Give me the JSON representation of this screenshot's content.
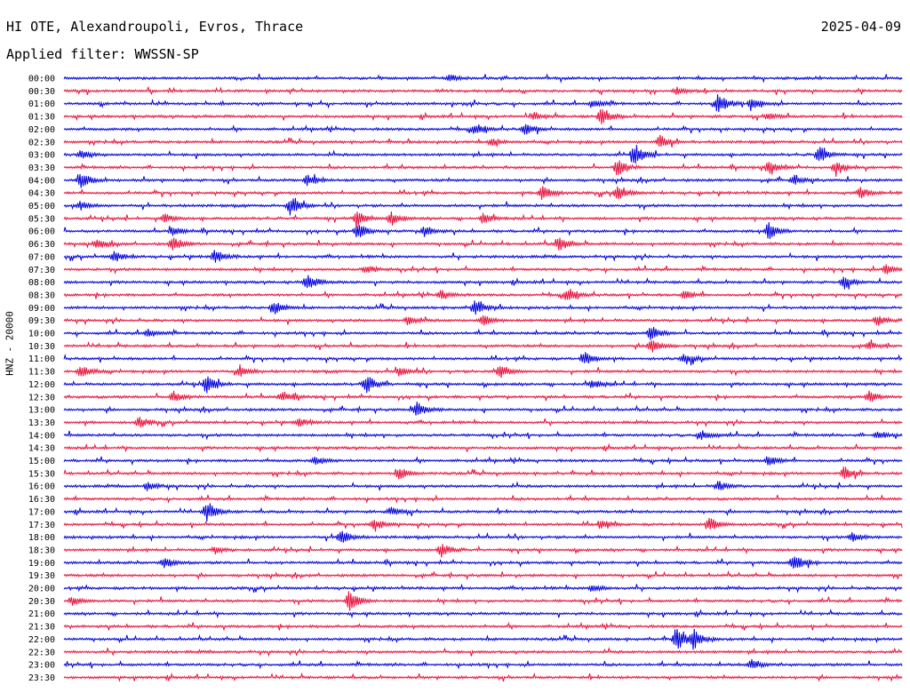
{
  "header": {
    "title": "HI OTE, Alexandroupoli, Evros, Thrace",
    "date": "2025-04-09",
    "filter": "Applied filter: WWSSN-SP"
  },
  "channel_label": "HNZ - 20000",
  "colors": {
    "even_trace": "#0000dd",
    "odd_trace": "#e8103c"
  },
  "chart_data": {
    "type": "line",
    "description_kind": "helicorder",
    "row_labels": [
      "00:00",
      "00:30",
      "01:00",
      "01:30",
      "02:00",
      "02:30",
      "03:00",
      "03:30",
      "04:00",
      "04:30",
      "05:00",
      "05:30",
      "06:00",
      "06:30",
      "07:00",
      "07:30",
      "08:00",
      "08:30",
      "09:00",
      "09:30",
      "10:00",
      "10:30",
      "11:00",
      "11:30",
      "12:00",
      "12:30",
      "13:00",
      "13:30",
      "14:00",
      "14:30",
      "15:00",
      "15:30",
      "16:00",
      "16:30",
      "17:00",
      "17:30",
      "18:00",
      "18:30",
      "19:00",
      "19:30",
      "20:00",
      "20:30",
      "21:00",
      "21:30",
      "22:00",
      "22:30",
      "23:00",
      "23:30"
    ],
    "events": [
      {
        "row": 0,
        "x": 0.46,
        "amp": 4
      },
      {
        "row": 1,
        "x": 0.73,
        "amp": 4
      },
      {
        "row": 2,
        "x": 0.78,
        "amp": 12
      },
      {
        "row": 2,
        "x": 0.82,
        "amp": 7
      },
      {
        "row": 2,
        "x": 0.63,
        "amp": 5
      },
      {
        "row": 3,
        "x": 0.64,
        "amp": 10
      },
      {
        "row": 3,
        "x": 0.56,
        "amp": 4
      },
      {
        "row": 3,
        "x": 0.84,
        "amp": 4
      },
      {
        "row": 4,
        "x": 0.49,
        "amp": 7
      },
      {
        "row": 4,
        "x": 0.55,
        "amp": 7
      },
      {
        "row": 5,
        "x": 0.71,
        "amp": 8
      },
      {
        "row": 5,
        "x": 0.51,
        "amp": 4
      },
      {
        "row": 6,
        "x": 0.68,
        "amp": 11
      },
      {
        "row": 6,
        "x": 0.9,
        "amp": 10
      },
      {
        "row": 6,
        "x": 0.02,
        "amp": 5
      },
      {
        "row": 7,
        "x": 0.66,
        "amp": 10
      },
      {
        "row": 7,
        "x": 0.84,
        "amp": 8
      },
      {
        "row": 7,
        "x": 0.92,
        "amp": 8
      },
      {
        "row": 8,
        "x": 0.02,
        "amp": 9
      },
      {
        "row": 8,
        "x": 0.29,
        "amp": 6
      },
      {
        "row": 8,
        "x": 0.87,
        "amp": 5
      },
      {
        "row": 9,
        "x": 0.57,
        "amp": 9
      },
      {
        "row": 9,
        "x": 0.66,
        "amp": 8
      },
      {
        "row": 9,
        "x": 0.95,
        "amp": 6
      },
      {
        "row": 10,
        "x": 0.27,
        "amp": 11
      },
      {
        "row": 10,
        "x": 0.02,
        "amp": 5
      },
      {
        "row": 11,
        "x": 0.35,
        "amp": 9
      },
      {
        "row": 11,
        "x": 0.39,
        "amp": 7
      },
      {
        "row": 11,
        "x": 0.5,
        "amp": 6
      },
      {
        "row": 11,
        "x": 0.12,
        "amp": 5
      },
      {
        "row": 12,
        "x": 0.35,
        "amp": 9
      },
      {
        "row": 12,
        "x": 0.84,
        "amp": 10
      },
      {
        "row": 12,
        "x": 0.43,
        "amp": 6
      },
      {
        "row": 12,
        "x": 0.13,
        "amp": 5
      },
      {
        "row": 13,
        "x": 0.13,
        "amp": 8
      },
      {
        "row": 13,
        "x": 0.59,
        "amp": 8
      },
      {
        "row": 13,
        "x": 0.04,
        "amp": 5
      },
      {
        "row": 14,
        "x": 0.18,
        "amp": 8
      },
      {
        "row": 14,
        "x": 0.06,
        "amp": 6
      },
      {
        "row": 15,
        "x": 0.36,
        "amp": 5
      },
      {
        "row": 15,
        "x": 0.98,
        "amp": 6
      },
      {
        "row": 16,
        "x": 0.29,
        "amp": 9
      },
      {
        "row": 16,
        "x": 0.93,
        "amp": 7
      },
      {
        "row": 17,
        "x": 0.6,
        "amp": 9
      },
      {
        "row": 17,
        "x": 0.45,
        "amp": 6
      },
      {
        "row": 17,
        "x": 0.74,
        "amp": 5
      },
      {
        "row": 18,
        "x": 0.25,
        "amp": 8
      },
      {
        "row": 18,
        "x": 0.49,
        "amp": 9
      },
      {
        "row": 19,
        "x": 0.5,
        "amp": 6
      },
      {
        "row": 19,
        "x": 0.97,
        "amp": 6
      },
      {
        "row": 19,
        "x": 0.41,
        "amp": 5
      },
      {
        "row": 20,
        "x": 0.7,
        "amp": 8
      },
      {
        "row": 20,
        "x": 0.1,
        "amp": 5
      },
      {
        "row": 21,
        "x": 0.7,
        "amp": 8
      },
      {
        "row": 21,
        "x": 0.96,
        "amp": 4
      },
      {
        "row": 22,
        "x": 0.62,
        "amp": 8
      },
      {
        "row": 22,
        "x": 0.74,
        "amp": 6
      },
      {
        "row": 23,
        "x": 0.02,
        "amp": 7
      },
      {
        "row": 23,
        "x": 0.21,
        "amp": 6
      },
      {
        "row": 23,
        "x": 0.52,
        "amp": 8
      },
      {
        "row": 23,
        "x": 0.4,
        "amp": 5
      },
      {
        "row": 24,
        "x": 0.17,
        "amp": 10
      },
      {
        "row": 24,
        "x": 0.36,
        "amp": 11
      },
      {
        "row": 24,
        "x": 0.63,
        "amp": 5
      },
      {
        "row": 25,
        "x": 0.13,
        "amp": 6
      },
      {
        "row": 25,
        "x": 0.26,
        "amp": 6
      },
      {
        "row": 25,
        "x": 0.96,
        "amp": 7
      },
      {
        "row": 26,
        "x": 0.42,
        "amp": 9
      },
      {
        "row": 27,
        "x": 0.09,
        "amp": 6
      },
      {
        "row": 27,
        "x": 0.28,
        "amp": 5
      },
      {
        "row": 28,
        "x": 0.76,
        "amp": 6
      },
      {
        "row": 28,
        "x": 0.97,
        "amp": 5
      },
      {
        "row": 30,
        "x": 0.84,
        "amp": 6
      },
      {
        "row": 30,
        "x": 0.3,
        "amp": 4
      },
      {
        "row": 31,
        "x": 0.4,
        "amp": 7
      },
      {
        "row": 31,
        "x": 0.93,
        "amp": 8
      },
      {
        "row": 32,
        "x": 0.1,
        "amp": 5
      },
      {
        "row": 32,
        "x": 0.78,
        "amp": 6
      },
      {
        "row": 34,
        "x": 0.17,
        "amp": 11
      },
      {
        "row": 34,
        "x": 0.39,
        "amp": 5
      },
      {
        "row": 35,
        "x": 0.37,
        "amp": 7
      },
      {
        "row": 35,
        "x": 0.77,
        "amp": 8
      },
      {
        "row": 35,
        "x": 0.64,
        "amp": 5
      },
      {
        "row": 36,
        "x": 0.33,
        "amp": 8
      },
      {
        "row": 36,
        "x": 0.94,
        "amp": 5
      },
      {
        "row": 37,
        "x": 0.45,
        "amp": 8
      },
      {
        "row": 37,
        "x": 0.18,
        "amp": 4
      },
      {
        "row": 38,
        "x": 0.87,
        "amp": 10
      },
      {
        "row": 38,
        "x": 0.12,
        "amp": 6
      },
      {
        "row": 40,
        "x": 0.63,
        "amp": 4
      },
      {
        "row": 41,
        "x": 0.34,
        "amp": 12
      },
      {
        "row": 41,
        "x": 0.01,
        "amp": 5
      },
      {
        "row": 44,
        "x": 0.73,
        "amp": 14
      },
      {
        "row": 44,
        "x": 0.75,
        "amp": 10
      },
      {
        "row": 46,
        "x": 0.82,
        "amp": 5
      }
    ]
  }
}
